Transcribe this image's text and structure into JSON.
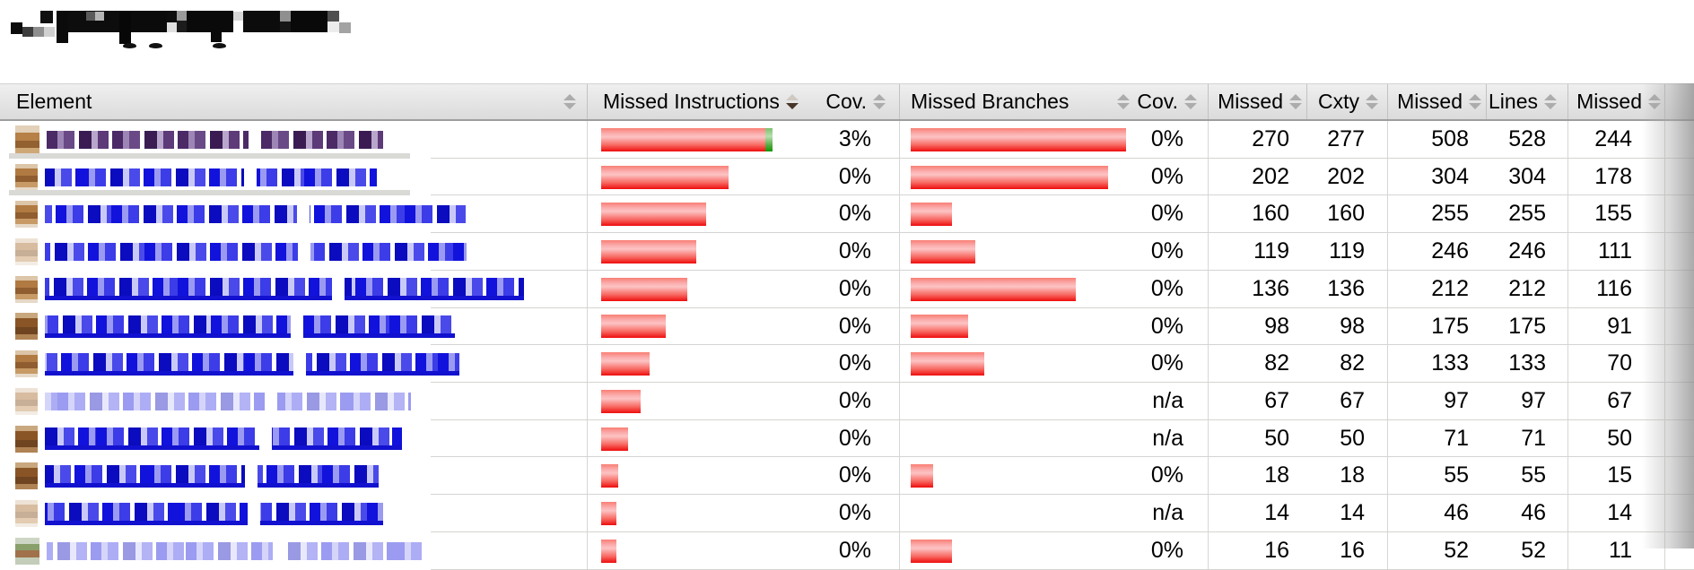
{
  "page": {
    "title_redacted": true,
    "title_blocks": [
      [
        12,
        25,
        13,
        13,
        "#0c0c0c"
      ],
      [
        25,
        30,
        12,
        11,
        "#3d3d3d"
      ],
      [
        37,
        30,
        12,
        11,
        "#8e8e8e"
      ],
      [
        49,
        30,
        12,
        11,
        "#d0d0d0"
      ],
      [
        45,
        12,
        14,
        14,
        "#101010"
      ],
      [
        63,
        12,
        13,
        36,
        "#0b0b0b"
      ],
      [
        76,
        12,
        121,
        24,
        "#0d0d0d"
      ],
      [
        96,
        13,
        10,
        10,
        "#5a5a5a"
      ],
      [
        106,
        13,
        10,
        10,
        "#b5b5b5"
      ],
      [
        133,
        13,
        13,
        36,
        "#070707"
      ],
      [
        146,
        12,
        40,
        24,
        "#0b0b0b"
      ],
      [
        186,
        25,
        11,
        11,
        "#e0e0e0"
      ],
      [
        197,
        12,
        11,
        11,
        "#9b9b9b"
      ],
      [
        197,
        23,
        11,
        13,
        "#1c1c1c"
      ],
      [
        208,
        12,
        52,
        24,
        "#0a0a0a"
      ],
      [
        235,
        25,
        12,
        22,
        "#0a0a0a"
      ],
      [
        260,
        13,
        11,
        10,
        "#d7d7d7"
      ],
      [
        271,
        12,
        41,
        24,
        "#0c0c0c"
      ],
      [
        312,
        12,
        12,
        12,
        "#8f8f8f"
      ],
      [
        312,
        24,
        12,
        12,
        "#161616"
      ],
      [
        324,
        12,
        41,
        24,
        "#090909"
      ],
      [
        365,
        12,
        13,
        12,
        "#4f4f4f"
      ],
      [
        365,
        24,
        13,
        12,
        "#ececec"
      ],
      [
        378,
        25,
        13,
        12,
        "#a3a3a3"
      ]
    ],
    "title_blobs": [
      [
        137,
        48,
        15,
        6
      ],
      [
        166,
        48,
        15,
        6
      ],
      [
        237,
        48,
        15,
        6
      ]
    ]
  },
  "colors": {
    "link_blue": "#1212dd",
    "link_visited_purple": "#4b2a66",
    "bar_red": "#ee0d0d",
    "bar_green": "#0f9400",
    "header_bg": "#e4e4e4",
    "sort_active_arrow": "#463528"
  },
  "table": {
    "headers": {
      "element": "Element",
      "missed_instructions": "Missed Instructions",
      "cov_instructions": "Cov.",
      "missed_branches": "Missed Branches",
      "cov_branches": "Cov.",
      "missed_cxty": "Missed",
      "cxty": "Cxty",
      "missed_lines": "Missed",
      "lines": "Lines",
      "missed_methods": "Missed"
    },
    "sort": {
      "column": "missed_instructions",
      "direction": "desc"
    },
    "rows": [
      {
        "link": "purple",
        "text_w": 375,
        "underline": false,
        "graybar": true,
        "icon": "tanbig",
        "instr_red": 183,
        "instr_green": 8,
        "instr_cov": "3%",
        "branch_red": 240,
        "branch_cov": "0%",
        "missed_cxty": "270",
        "cxty": "277",
        "missed_lines": "508",
        "lines": "528",
        "missed_methods": "244"
      },
      {
        "link": "blue",
        "text_w": 370,
        "underline": false,
        "graybar": true,
        "icon": "tan",
        "instr_red": 142,
        "instr_green": 0,
        "instr_cov": "0%",
        "branch_red": 220,
        "branch_cov": "0%",
        "missed_cxty": "202",
        "cxty": "202",
        "missed_lines": "304",
        "lines": "304",
        "missed_methods": "178"
      },
      {
        "link": "blue",
        "text_w": 469,
        "underline": false,
        "graybar": false,
        "icon": "tan",
        "instr_red": 117,
        "instr_green": 0,
        "instr_cov": "0%",
        "branch_red": 46,
        "branch_cov": "0%",
        "missed_cxty": "160",
        "cxty": "160",
        "missed_lines": "255",
        "lines": "255",
        "missed_methods": "155"
      },
      {
        "link": "blue",
        "text_w": 470,
        "underline": false,
        "graybar": false,
        "icon": "tanlight",
        "instr_red": 106,
        "instr_green": 0,
        "instr_cov": "0%",
        "branch_red": 72,
        "branch_cov": "0%",
        "missed_cxty": "119",
        "cxty": "119",
        "missed_lines": "246",
        "lines": "246",
        "missed_methods": "111"
      },
      {
        "link": "blue",
        "text_w": 534,
        "underline": true,
        "graybar": false,
        "icon": "tan",
        "instr_red": 96,
        "instr_green": 0,
        "instr_cov": "0%",
        "branch_red": 184,
        "branch_cov": "0%",
        "missed_cxty": "136",
        "cxty": "136",
        "missed_lines": "212",
        "lines": "212",
        "missed_methods": "116"
      },
      {
        "link": "blue",
        "text_w": 457,
        "underline": true,
        "graybar": false,
        "icon": "tandark",
        "instr_red": 72,
        "instr_green": 0,
        "instr_cov": "0%",
        "branch_red": 64,
        "branch_cov": "0%",
        "missed_cxty": "98",
        "cxty": "98",
        "missed_lines": "175",
        "lines": "175",
        "missed_methods": "91"
      },
      {
        "link": "blue",
        "text_w": 462,
        "underline": true,
        "graybar": false,
        "icon": "tan",
        "instr_red": 54,
        "instr_green": 0,
        "instr_cov": "0%",
        "branch_red": 82,
        "branch_cov": "0%",
        "missed_cxty": "82",
        "cxty": "82",
        "missed_lines": "133",
        "lines": "133",
        "missed_methods": "70"
      },
      {
        "link": "faded",
        "text_w": 408,
        "underline": false,
        "graybar": false,
        "icon": "tanlight",
        "instr_red": 44,
        "instr_green": 0,
        "instr_cov": "0%",
        "branch_red": 0,
        "branch_cov": "n/a",
        "missed_cxty": "67",
        "cxty": "67",
        "missed_lines": "97",
        "lines": "97",
        "missed_methods": "67"
      },
      {
        "link": "blue",
        "text_w": 398,
        "underline": true,
        "graybar": false,
        "icon": "tandark",
        "instr_red": 30,
        "instr_green": 0,
        "instr_cov": "0%",
        "branch_red": 0,
        "branch_cov": "n/a",
        "missed_cxty": "50",
        "cxty": "50",
        "missed_lines": "71",
        "lines": "71",
        "missed_methods": "50"
      },
      {
        "link": "blue",
        "text_w": 372,
        "underline": true,
        "graybar": false,
        "icon": "tandark",
        "instr_red": 19,
        "instr_green": 0,
        "instr_cov": "0%",
        "branch_red": 25,
        "branch_cov": "0%",
        "missed_cxty": "18",
        "cxty": "18",
        "missed_lines": "55",
        "lines": "55",
        "missed_methods": "15"
      },
      {
        "link": "blue",
        "text_w": 377,
        "underline": true,
        "graybar": false,
        "icon": "tanlight",
        "instr_red": 17,
        "instr_green": 0,
        "instr_cov": "0%",
        "branch_red": 0,
        "branch_cov": "n/a",
        "missed_cxty": "14",
        "cxty": "14",
        "missed_lines": "46",
        "lines": "46",
        "missed_methods": "14"
      },
      {
        "link": "faded",
        "text_w": 420,
        "underline": false,
        "graybar": false,
        "icon": "green",
        "instr_red": 17,
        "instr_green": 0,
        "instr_cov": "0%",
        "branch_red": 46,
        "branch_cov": "0%",
        "missed_cxty": "16",
        "cxty": "16",
        "missed_lines": "52",
        "lines": "52",
        "missed_methods": "11"
      }
    ]
  }
}
